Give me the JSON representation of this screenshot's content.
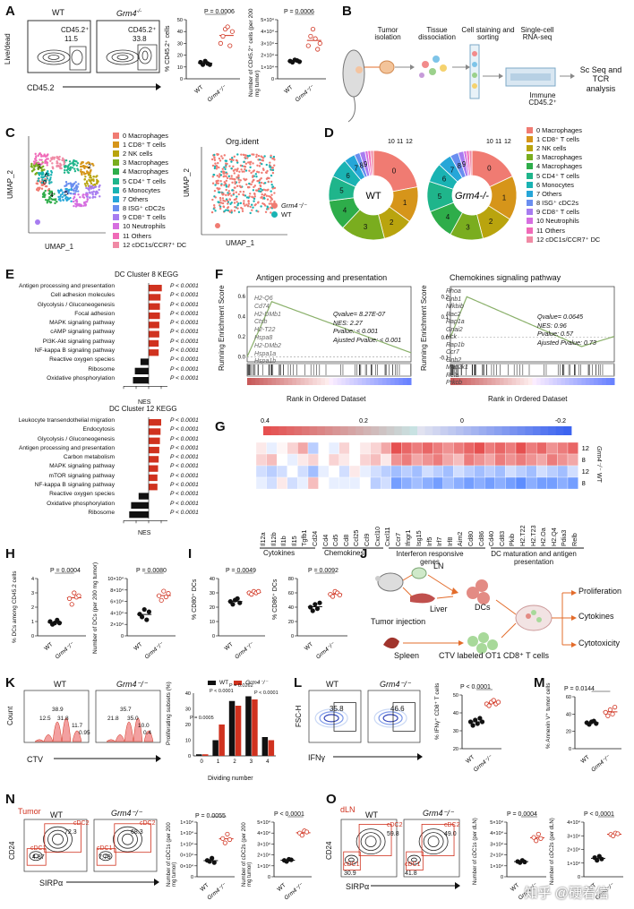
{
  "panel_labels": [
    "A",
    "B",
    "C",
    "D",
    "E",
    "F",
    "G",
    "H",
    "I",
    "J",
    "K",
    "L",
    "M",
    "N",
    "O"
  ],
  "panelA": {
    "flow_axis_y": "Live/dead",
    "flow_axis_x": "CD45.2",
    "wt_title": "WT",
    "ko_title": "Grm4",
    "ko_sup": "-/-",
    "wt_gate": "CD45.2⁺",
    "wt_pct": "11.5",
    "ko_gate": "CD45.2⁺",
    "ko_pct": "33.8",
    "pval1": "P = 0.0006",
    "pval2": "P = 0.0006",
    "ylab1": "% CD45.2⁺ cells",
    "ylab2": "Number of CD45.2⁺ cells (per 200 mg tumor)",
    "xt_wt": "WT",
    "xt_ko": "Grm4⁻/⁻"
  },
  "panelB": {
    "steps": [
      "Tumor isolation",
      "Tissue dissociation",
      "Cell staining and sorting",
      "Single-cell RNA-seq"
    ],
    "immune": "Immune CD45.2⁺",
    "result": "Sc Seq and TCR analysis"
  },
  "clusters": {
    "names": [
      "0 Macrophages",
      "1 CD8⁺ T cells",
      "2 NK cells",
      "3 Macrophages",
      "4 Macrophages",
      "5 CD4⁺ T cells",
      "6 Monocytes",
      "7 Others",
      "8 ISG⁺ cDC2s",
      "9 CD8⁺ T cells",
      "10 Neutrophils",
      "11 Others",
      "12 cDC1s/CCR7⁺ DC"
    ],
    "colors": [
      "#f07b72",
      "#d6951a",
      "#b9a40e",
      "#7aad1f",
      "#2ead4a",
      "#1fb58b",
      "#1ab3b3",
      "#26a6d8",
      "#6a8ef0",
      "#a77cf0",
      "#d66ee0",
      "#f06ab8",
      "#f08aa5"
    ]
  },
  "panelC": {
    "umap_x": "UMAP_1",
    "umap_y": "UMAP_2",
    "title2": "Org.ident",
    "legend_ko": "Grm4⁻/⁻",
    "legend_wt": "WT",
    "ko_color": "#f07b72",
    "wt_color": "#1ab3b3"
  },
  "panelD": {
    "wt_label": "WT",
    "ko_label": "Grm4",
    "ko_sup": "-/-",
    "chart_data": [
      {
        "type": "pie",
        "title": "WT",
        "labels": [
          "0",
          "1",
          "2",
          "3",
          "4",
          "5",
          "6",
          "7",
          "8",
          "9",
          "10",
          "11",
          "12"
        ],
        "values": [
          22,
          13,
          11,
          16,
          11,
          9,
          7,
          4,
          2,
          2,
          1,
          1,
          1
        ]
      },
      {
        "type": "pie",
        "title": "Grm4-/-",
        "labels": [
          "0",
          "1",
          "2",
          "3",
          "4",
          "5",
          "6",
          "7",
          "8",
          "9",
          "10",
          "11",
          "12"
        ],
        "values": [
          18,
          16,
          12,
          12,
          11,
          11,
          7,
          5,
          3,
          2,
          1,
          1,
          1
        ]
      }
    ]
  },
  "panelE": {
    "title1": "DC Cluster 8 KEGG",
    "title2": "DC Cluster 12 KEGG",
    "xlabel": "NES",
    "ticks": [
      "-4",
      "-2",
      "0",
      "2"
    ],
    "chart_data": [
      {
        "type": "bar",
        "title": "DC Cluster 8 KEGG",
        "categories": [
          "Antigen processing and presentation",
          "Cell adhesion molecules",
          "Glycolysis / Gluconeogenesis",
          "Focal adhesion",
          "MAPK signaling pathway",
          "cAMP signaling pathway",
          "PI3K-Akt signaling pathway",
          "NF-kappa B signaling pathway",
          "Reactive oxygen species",
          "Ribosome",
          "Oxidative phosphorylation"
        ],
        "values": [
          2.1,
          1.9,
          1.8,
          1.8,
          1.7,
          1.7,
          1.6,
          1.6,
          -1.3,
          -2.2,
          -2.5
        ],
        "pvalues": [
          "P < 0.0001",
          "P < 0.0001",
          "P < 0.0001",
          "P < 0.0001",
          "P < 0.0001",
          "P < 0.0001",
          "P < 0.0001",
          "P < 0.0001",
          "P < 0.0001",
          "P < 0.0001",
          "P < 0.0001"
        ],
        "xlim": [
          -4,
          3
        ]
      },
      {
        "type": "bar",
        "title": "DC Cluster 12 KEGG",
        "categories": [
          "Leukocyte transendothelial migration",
          "Endocytosis",
          "Glycolysis / Gluconeogenesis",
          "Antigen processing and presentation",
          "Carbon metabolism",
          "MAPK signaling pathway",
          "mTOR signaling pathway",
          "NF-kappa B signaling pathway",
          "Reactive oxygen species",
          "Oxidative phosphorylation",
          "Ribosome"
        ],
        "values": [
          2.0,
          1.9,
          1.8,
          1.7,
          1.6,
          1.5,
          1.4,
          1.4,
          -1.6,
          -2.8,
          -3.1
        ],
        "pvalues": [
          "P < 0.0001",
          "P < 0.0001",
          "P < 0.0001",
          "P < 0.0001",
          "P < 0.0001",
          "P < 0.0001",
          "P < 0.0001",
          "P < 0.0001",
          "P < 0.0001",
          "P < 0.0001",
          "P < 0.0001"
        ],
        "xlim": [
          -4,
          3
        ]
      }
    ]
  },
  "panelF": {
    "title1": "Antigen processing and presentation",
    "title2": "Chemokines signaling pathway",
    "ylab": "Running Enrichment Score",
    "xlab": "Rank in Ordered Dataset",
    "genes1": [
      "H2-Q6",
      "Cd74",
      "H2-DMb1",
      "Ctsb",
      "H2-T22",
      "Hspa8",
      "H2-DMb2",
      "Hspa1a",
      "Hspa1b"
    ],
    "stats1": [
      "Qvalue= 8.27E-07",
      "NES: 2.27",
      "Pvalue: < 0.001",
      "Ajusted Pvalue: < 0.001"
    ],
    "genes2": [
      "Rhoa",
      "Gnb1",
      "Nfkbib",
      "Rac2",
      "Rap1a",
      "Gnai2",
      "Hck",
      "Rap1b",
      "Ccr7",
      "Gnb2",
      "Map2k1",
      "Rela",
      "Prkcb"
    ],
    "stats2": [
      "Qvalue= 0.0645",
      "NES: 0.96",
      "Pvalue: 0.57",
      "Ajusted Pvalue: 0.73"
    ],
    "yticks1": [
      "0.6",
      "0.4",
      "0.2",
      "0.0"
    ],
    "yticks2": [
      "0.2",
      "0.1",
      "0.0",
      "-0.1"
    ]
  },
  "panelG": {
    "scale_ticks": [
      "0.4",
      "0.2",
      "0",
      "-0.2"
    ],
    "genes": [
      "Il12a",
      "Il12b",
      "Il1b",
      "Il15",
      "Tgfb1",
      "Cd24",
      "Cd4",
      "Cd5",
      "Cd8",
      "Ccl25",
      "Ccl9",
      "Cxcl10",
      "Cxcl11",
      "Ccr7",
      "Ifngr1",
      "Isg15",
      "Irf5",
      "Irf7",
      "Irf8",
      "Aim2",
      "Cd80",
      "Cd86",
      "Cd40",
      "Cd83",
      "Pkib",
      "H2.T22",
      "H2.T23",
      "H2.Oa",
      "H2.Q4",
      "Pdia3",
      "Relb"
    ],
    "rows": [
      "12",
      "8",
      "12",
      "8"
    ],
    "groups": [
      "Cytokines",
      "Chemokines",
      "Interferon responsive genes",
      "DC maturation and antigen presentation"
    ],
    "side_ko": "Grm4⁻/⁻",
    "side_wt": "WT",
    "chart_data": {
      "type": "heatmap",
      "rows": [
        "Grm4-/- 12",
        "Grm4-/- 8",
        "WT 12",
        "WT 8"
      ],
      "columns": [
        "Il12a",
        "Il12b",
        "Il1b",
        "Il15",
        "Tgfb1",
        "Cd24",
        "Cd4",
        "Cd5",
        "Cd8",
        "Ccl25",
        "Ccl9",
        "Cxcl10",
        "Cxcl11",
        "Ccr7",
        "Ifngr1",
        "Isg15",
        "Irf5",
        "Irf7",
        "Irf8",
        "Aim2",
        "Cd80",
        "Cd86",
        "Cd40",
        "Cd83",
        "Pkib",
        "H2.T22",
        "H2.T23",
        "H2.Oa",
        "H2.Q4",
        "Pdia3",
        "Relb"
      ],
      "values": [
        [
          0.05,
          -0.05,
          0.02,
          0.1,
          0.2,
          -0.15,
          0.0,
          -0.05,
          0.1,
          0.0,
          0.05,
          0.1,
          0.2,
          0.4,
          0.35,
          0.3,
          0.35,
          0.3,
          0.25,
          0.3,
          0.35,
          0.4,
          0.3,
          0.35,
          0.3,
          0.4,
          0.3,
          0.35,
          0.25,
          0.3,
          0.35
        ],
        [
          0.1,
          0.15,
          0.0,
          -0.05,
          0.05,
          0.1,
          0.0,
          0.1,
          0.05,
          0.0,
          0.1,
          0.15,
          0.05,
          0.25,
          0.3,
          0.2,
          0.25,
          0.3,
          0.2,
          0.15,
          0.3,
          0.25,
          0.2,
          0.3,
          0.25,
          0.3,
          0.25,
          0.2,
          0.3,
          0.25,
          0.2
        ],
        [
          -0.1,
          -0.15,
          -0.1,
          0.0,
          -0.1,
          -0.2,
          -0.05,
          0.0,
          -0.1,
          0.05,
          -0.05,
          -0.1,
          -0.15,
          -0.2,
          -0.15,
          -0.2,
          -0.1,
          -0.15,
          -0.2,
          -0.1,
          -0.15,
          -0.2,
          -0.15,
          -0.2,
          -0.1,
          -0.15,
          -0.2,
          -0.1,
          -0.15,
          -0.2,
          -0.1
        ],
        [
          -0.05,
          -0.1,
          0.05,
          -0.1,
          -0.05,
          0.15,
          0.0,
          -0.05,
          -0.05,
          -0.05,
          0.0,
          -0.15,
          -0.1,
          -0.3,
          -0.25,
          -0.2,
          -0.25,
          -0.3,
          -0.2,
          -0.25,
          -0.3,
          -0.25,
          -0.3,
          -0.25,
          -0.3,
          -0.35,
          -0.25,
          -0.3,
          -0.3,
          -0.25,
          -0.3
        ]
      ],
      "colorscale": [
        -0.2,
        0.4
      ]
    }
  },
  "panelH": {
    "pval1": "P = 0.0004",
    "pval2": "P = 0.0080",
    "ylab1": "% DCs among CD45.2 cells",
    "ylab2": "Number of DCs (per 200 mg tumor)",
    "chart_data": [
      {
        "type": "scatter",
        "categories": [
          "WT",
          "Grm4-/-"
        ],
        "wt": [
          1.0,
          0.8,
          0.9,
          1.1,
          0.9
        ],
        "ko": [
          2.6,
          2.2,
          3.0,
          2.7,
          2.8
        ],
        "ylim": [
          0,
          4
        ]
      },
      {
        "type": "scatter",
        "categories": [
          "WT",
          "Grm4-/-"
        ],
        "wt": [
          38000,
          33000,
          46000,
          28000,
          42000
        ],
        "ko": [
          70000,
          62000,
          78000,
          68000,
          74000
        ],
        "ylim": [
          0,
          100000
        ]
      }
    ]
  },
  "panelI": {
    "pval1": "P = 0.0049",
    "pval2": "P = 0.0092",
    "ylab1": "% CD80⁺ DCs",
    "ylab2": "% CD86⁺ DCs",
    "chart_data": [
      {
        "type": "scatter",
        "categories": [
          "WT",
          "Grm4-/-"
        ],
        "wt": [
          24,
          22,
          25,
          26,
          23
        ],
        "ko": [
          30,
          29,
          31,
          30,
          31
        ],
        "ylim": [
          0,
          40
        ]
      },
      {
        "type": "scatter",
        "categories": [
          "WT",
          "Grm4-/-"
        ],
        "wt": [
          40,
          35,
          44,
          38,
          46
        ],
        "ko": [
          58,
          55,
          62,
          60,
          57
        ],
        "ylim": [
          0,
          80
        ]
      }
    ]
  },
  "panelJ": {
    "ln": "LN",
    "liver": "Liver",
    "dcs": "DCs",
    "tumor_injection": "Tumor injection",
    "spleen": "Spleen",
    "ctv": "CTV labeled OT1 CD8⁺ T cells",
    "outcomes": [
      "Proliferation",
      "Cytokines",
      "Cytotoxicity"
    ]
  },
  "panelK": {
    "xlab": "CTV",
    "ylab": "Count",
    "wt": "WT",
    "ko": "Grm4⁻/⁻",
    "wt_pcts": [
      "38.9",
      "12.5",
      "31.8",
      "11.7",
      "0.95"
    ],
    "ko_pcts": [
      "35.7",
      "21.8",
      "35.0",
      "10.0",
      "0.4"
    ],
    "bar_ylab": "Proliferating subsets (%)",
    "bar_xlab": "Dividing number",
    "legend_wt": "WT",
    "legend_ko": "Grm4⁻/⁻",
    "pvals": [
      "P = 0.0005",
      "P < 0.0001",
      "P = 0.0262",
      "P < 0.0001"
    ],
    "chart_data": {
      "type": "bar",
      "categories": [
        "0",
        "1",
        "2",
        "3",
        "4"
      ],
      "series": [
        {
          "name": "WT",
          "values": [
            1,
            10,
            35,
            38,
            12
          ]
        },
        {
          "name": "Grm4-/-",
          "values": [
            1,
            20,
            32,
            36,
            10
          ]
        }
      ],
      "ylim": [
        0,
        40
      ]
    }
  },
  "panelL": {
    "ylab": "FSC-H",
    "xlab": "IFNγ",
    "wt": "WT",
    "ko": "Grm4⁻/⁻",
    "wt_pct": "35.8",
    "ko_pct": "46.6",
    "pval": "P < 0.0001",
    "plot_ylab": "% IFNγ⁺ CD8⁺ T cells",
    "chart_data": {
      "type": "scatter",
      "categories": [
        "WT",
        "Grm4-/-"
      ],
      "wt": [
        35,
        33,
        36,
        34,
        37,
        35
      ],
      "ko": [
        45,
        44,
        46,
        47,
        45,
        46
      ],
      "ylim": [
        20,
        50
      ]
    }
  },
  "panelM": {
    "pval": "P = 0.0144",
    "ylab": "% Annexin V⁺ tumor cells",
    "chart_data": {
      "type": "scatter",
      "categories": [
        "WT",
        "Grm4-/-"
      ],
      "wt": [
        30,
        28,
        31,
        32,
        29
      ],
      "ko": [
        42,
        38,
        45,
        40,
        48
      ],
      "ylim": [
        0,
        60
      ]
    }
  },
  "panelN": {
    "tag": "Tumor",
    "wt": "WT",
    "ko": "Grm4⁻/⁻",
    "ylab": "CD24",
    "xlab": "SIRPα",
    "wt_cdc2": "cDC2",
    "wt_cdc2_pct": "72.3",
    "wt_cdc1": "cDC1",
    "wt_cdc1_pct": "4.87",
    "ko_cdc2": "cDC2",
    "ko_cdc2_pct": "68.3",
    "ko_cdc1": "cDC1",
    "ko_cdc1_pct": "7.79",
    "pval1": "P = 0.0055",
    "pval2": "P < 0.0001",
    "ylab1": "Number of cDC1s (per 200 mg tumor)",
    "ylab2": "Number of cDC2s (per 200 mg tumor)",
    "chart_data": [
      {
        "type": "scatter",
        "categories": [
          "WT",
          "Grm4-/-"
        ],
        "wt": [
          3000,
          2800,
          3400,
          2600
        ],
        "ko": [
          7000,
          6200,
          7800,
          6800
        ],
        "ylim": [
          0,
          10000
        ]
      },
      {
        "type": "scatter",
        "categories": [
          "WT",
          "Grm4-/-"
        ],
        "wt": [
          15000,
          14000,
          16000,
          15500
        ],
        "ko": [
          40000,
          38000,
          42000,
          41000
        ],
        "ylim": [
          0,
          50000
        ]
      }
    ]
  },
  "panelO": {
    "tag": "dLN",
    "wt": "WT",
    "ko": "Grm4⁻/⁻",
    "ylab": "CD24",
    "xlab": "SIRPα",
    "wt_cdc2": "cDC2",
    "wt_cdc2_pct": "59.8",
    "wt_cdc1": "cDC1",
    "wt_cdc1_pct": "30.9",
    "ko_cdc2": "cDC2",
    "ko_cdc2_pct": "49.0",
    "ko_cdc1": "cDC1",
    "ko_cdc1_pct": "41.8",
    "pval1": "P = 0.0004",
    "pval2": "P < 0.0001",
    "ylab1": "Number of cDC1s (per dLN)",
    "ylab2": "Number of cDC2s (per dLN)",
    "chart_data": [
      {
        "type": "scatter",
        "categories": [
          "WT",
          "Grm4-/-"
        ],
        "wt": [
          14000,
          13000,
          15000,
          13500
        ],
        "ko": [
          36000,
          33000,
          39000,
          35000
        ],
        "ylim": [
          0,
          50000
        ]
      },
      {
        "type": "scatter",
        "categories": [
          "WT",
          "Grm4-/-"
        ],
        "wt": [
          14000,
          12000,
          15000,
          13000
        ],
        "ko": [
          31000,
          30000,
          32000,
          31500
        ],
        "ylim": [
          0,
          40000
        ]
      }
    ]
  },
  "watermark": "知乎 @硬着信"
}
